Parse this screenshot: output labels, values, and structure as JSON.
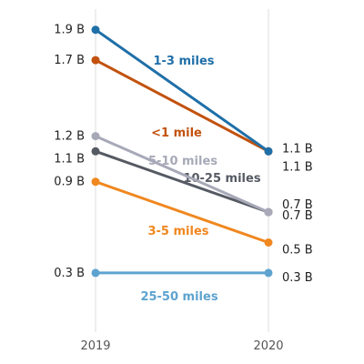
{
  "chart_data": {
    "type": "line",
    "x": [
      "2019",
      "2020"
    ],
    "series": [
      {
        "name": "1-3 miles",
        "values": [
          1.9,
          1.1
        ],
        "value_labels": [
          "1.9 B",
          "1.1 B"
        ],
        "color": "#1f6fa8"
      },
      {
        "name": "<1 mile",
        "values": [
          1.7,
          1.1
        ],
        "value_labels": [
          "1.7 B",
          "1.1 B"
        ],
        "color": "#c2520e"
      },
      {
        "name": "5-10 miles",
        "values": [
          1.2,
          0.7
        ],
        "value_labels": [
          "1.2 B",
          "0.7 B"
        ],
        "color": "#a7a9b8"
      },
      {
        "name": "10-25 miles",
        "values": [
          1.1,
          0.7
        ],
        "value_labels": [
          "1.1 B",
          "0.7 B"
        ],
        "color": "#555a63"
      },
      {
        "name": "3-5 miles",
        "values": [
          0.9,
          0.5
        ],
        "value_labels": [
          "0.9 B",
          "0.5 B"
        ],
        "color": "#f0871f"
      },
      {
        "name": "25-50 miles",
        "values": [
          0.3,
          0.3
        ],
        "value_labels": [
          "0.3 B",
          "0.3 B"
        ],
        "color": "#5ea3d0"
      }
    ],
    "ylim": [
      0,
      2
    ],
    "grid": false
  }
}
